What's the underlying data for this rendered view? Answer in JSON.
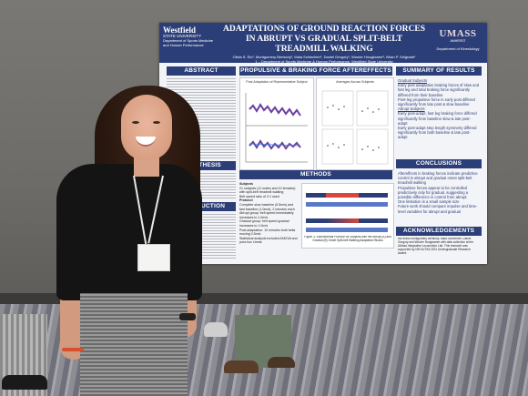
{
  "poster": {
    "uni_left": {
      "name": "Westfield",
      "sub": "STATE UNIVERSITY",
      "dept": "Department of Sports Medicine and Human Performance"
    },
    "title": "ADAPTATIONS OF GROUND REACTION FORCES IN ABRUPT VS GRADUAL SPLIT-BELT TREADMILL WALKING",
    "authors": "Olivia S. Elo¹, Montgomery Bertschy¹, Maia Schlechter¹, Daniel Gregory¹, Wouter Hoogkamer², Brian P. Selgrade¹",
    "affil1": "1 – Department of Sports Medicine & Human Performance, Westfield State University",
    "affil2": "2 – Department of Kinesiology, University of Massachusetts Amherst",
    "uni_right": {
      "name": "UMASS",
      "sub": "AMHERST",
      "dept": "Department of Kinesiology"
    },
    "sections": {
      "abstract": "ABSTRACT",
      "hypothesis": "HYPOTHESIS",
      "introduction": "INTRODUCTION",
      "aftereffects": "PROPULSIVE & BRAKING FORCE AFTEREFFECTS",
      "methods": "METHODS",
      "summary": "SUMMARY OF RESULTS",
      "conclusions": "CONCLUSIONS",
      "acknowledgements": "ACKNOWLEDGEMENTS"
    },
    "fig_left_title": "Post Adaptation of Representative Subject",
    "fig_right_title": "Averages Across Subjects",
    "summary_items": [
      "Gradual Subjects",
      "Early post adaptation braking forces of slow and fast leg and total braking force significantly differed from their baseline",
      "Post-leg propulsive force in early post differed significantly from late post & slow baseline",
      "Abrupt Subjects",
      "Early post-adapt, fast leg braking force differed significantly from baseline slow & late post-adapt",
      "Early post-adapt step length symmetry differed significantly from both baseline & late post-adapt"
    ],
    "conclusion_items": [
      "Aftereffects in braking forces indicate predictive control in abrupt and gradual onset split-belt treadmill walking",
      "Propulsive forces appear to be controlled predictively only for gradual, suggesting a possible difference in control from abrupt",
      "One limitation is a small sample size",
      "Future work should compare impulse and time-level variables for abrupt and gradual"
    ],
    "methods_items": [
      "Subjects",
      "21 subjects (11 males and 10 females) with split-belt treadmill walking",
      "Belt speed ratio of 2:1 used",
      "Protocol",
      "Complete slow baseline (0.5m/s) and fast baseline (1.0m/s), 2 minutes each",
      "Abrupt group: belt speed immediately increases to 1.0m/s",
      "Gradual group: belt speed gradual increases to 1.0m/s",
      "Post-adaptation: 10 minutes both belts moving 0.5m/s",
      "Statistical analysis included ANOVA and post-hoc t-tests"
    ],
    "methods_caption": "Figure 3. Experimental Protocol for Subjects with the Abrupt (A) and Gradual (B) Onset Split-belt Walking Adaptation Blocks",
    "ack_text": "We thank Montgomery Bertschy, Maia Schlechter, Daniel Gregory and Wouter Hoogkamer with data collection at the UMass Integrative Locomotion Lab. This research was supported by NIH ALTSA 2021 Undergraduate Research Award."
  },
  "colors": {
    "poster_blue": "#2b3e78",
    "poster_bg": "#f3f4f7",
    "trace_purple": "#6b3fa0",
    "bar_red": "#d9463b"
  }
}
